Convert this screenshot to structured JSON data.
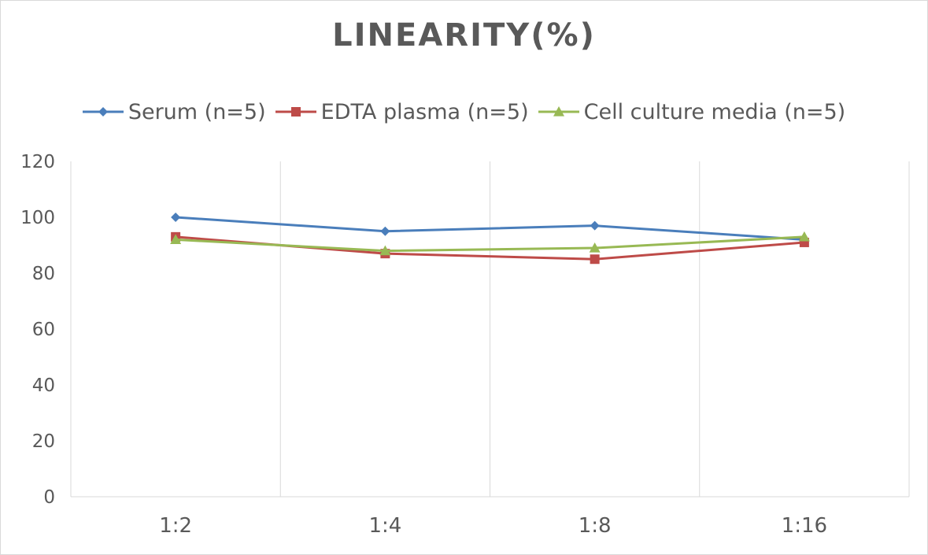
{
  "chart_data": {
    "type": "line",
    "title": "LINEARITY(%)",
    "categories": [
      "1:2",
      "1:4",
      "1:8",
      "1:16"
    ],
    "ylim": [
      0,
      120
    ],
    "yticks": [
      0,
      20,
      40,
      60,
      80,
      100,
      120
    ],
    "grid": "vertical",
    "legend_position": "top",
    "series": [
      {
        "name": "Serum (n=5)",
        "color": "#4a7ebb",
        "marker": "diamond",
        "values": [
          100,
          95,
          97,
          92
        ]
      },
      {
        "name": "EDTA plasma (n=5)",
        "color": "#be4b48",
        "marker": "square",
        "values": [
          93,
          87,
          85,
          91
        ]
      },
      {
        "name": "Cell culture media (n=5)",
        "color": "#98b954",
        "marker": "triangle",
        "values": [
          92,
          88,
          89,
          93
        ]
      }
    ]
  }
}
